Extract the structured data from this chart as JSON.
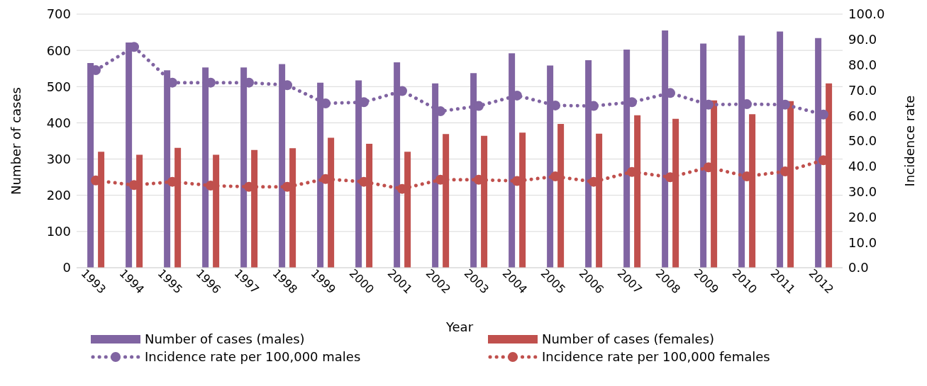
{
  "chart_data": {
    "type": "bar",
    "xlabel": "Year",
    "ylabel": "Number of cases",
    "y2label": "Incidence rate",
    "categories": [
      "1993",
      "1994",
      "1995",
      "1996",
      "1997",
      "1998",
      "1999",
      "2000",
      "2001",
      "2002",
      "2003",
      "2004",
      "2005",
      "2006",
      "2007",
      "2008",
      "2009",
      "2010",
      "2011",
      "2012"
    ],
    "series": [
      {
        "name": "Number of cases (males)",
        "color": "#8064a2",
        "values": [
          565,
          622,
          545,
          553,
          553,
          562,
          511,
          517,
          567,
          509,
          537,
          592,
          558,
          573,
          602,
          655,
          619,
          641,
          652,
          634
        ]
      },
      {
        "name": "Number of cases (females)",
        "color": "#c0504d",
        "values": [
          320,
          312,
          331,
          312,
          325,
          330,
          359,
          342,
          320,
          369,
          364,
          373,
          397,
          370,
          421,
          411,
          462,
          424,
          460,
          509
        ]
      },
      {
        "name": "Incidence rate per 100,000 males",
        "type": "line",
        "axis": "y2",
        "color": "#8064a2",
        "marker": "circle",
        "line_style": "dotted",
        "values": [
          77.9,
          87.1,
          73.0,
          73.0,
          73.0,
          72.0,
          64.8,
          65.3,
          69.7,
          61.7,
          63.8,
          67.9,
          64.0,
          63.8,
          65.3,
          68.9,
          64.3,
          64.5,
          64.3,
          60.4
        ]
      },
      {
        "name": "Incidence rate per 100,000 females",
        "type": "line",
        "axis": "y2",
        "color": "#c0504d",
        "marker": "circle",
        "line_style": "dotted",
        "values": [
          34.4,
          32.6,
          33.9,
          32.4,
          31.9,
          31.9,
          35.0,
          33.9,
          31.1,
          34.7,
          34.7,
          34.2,
          36.0,
          33.9,
          37.8,
          35.7,
          39.6,
          36.0,
          38.0,
          42.4
        ]
      }
    ],
    "ylim": [
      0,
      700
    ],
    "yticks": [
      0,
      100,
      200,
      300,
      400,
      500,
      600,
      700
    ],
    "y2lim": [
      0,
      100
    ],
    "y2ticks": [
      {
        "value": 0,
        "label": "0.0"
      },
      {
        "value": 10,
        "label": "10.0"
      },
      {
        "value": 20,
        "label": "20.0"
      },
      {
        "value": 30,
        "label": "30.0"
      },
      {
        "value": 40,
        "label": "40.0"
      },
      {
        "value": 50,
        "label": "50.0"
      },
      {
        "value": 60,
        "label": "60.0"
      },
      {
        "value": 70,
        "label": "70.0"
      },
      {
        "value": 80,
        "label": "80.0"
      },
      {
        "value": 90,
        "label": "90.0"
      },
      {
        "value": 100,
        "label": "100.0"
      }
    ],
    "grid": "y",
    "legend": "bottom"
  }
}
